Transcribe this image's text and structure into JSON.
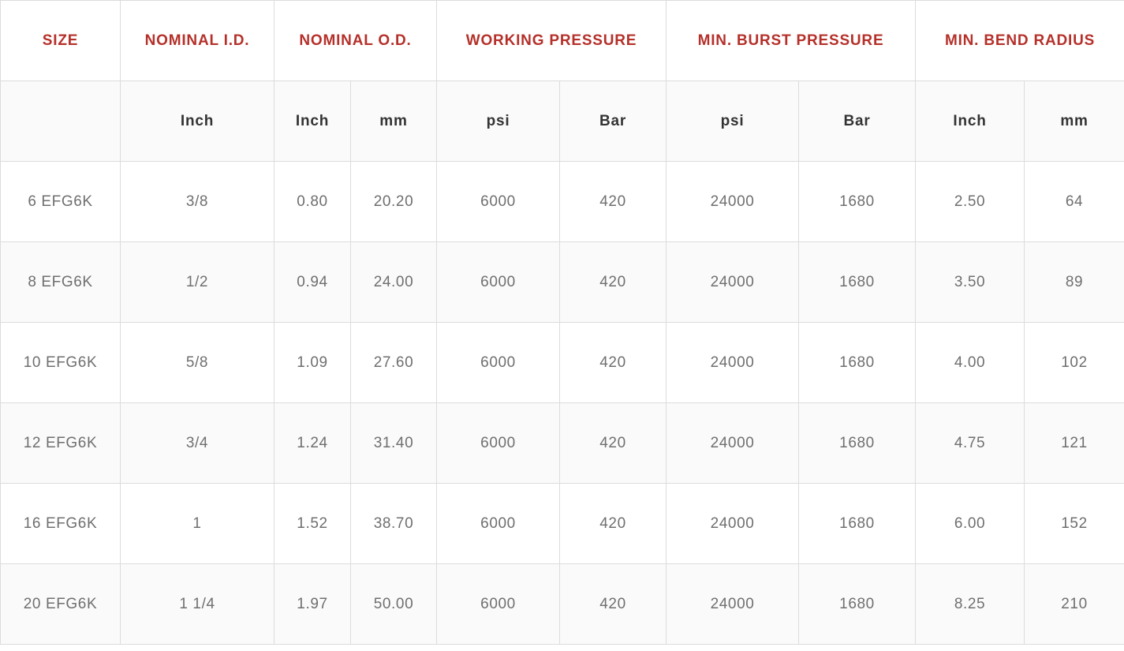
{
  "header": {
    "groups": [
      "SIZE",
      "NOMINAL I.D.",
      "NOMINAL O.D.",
      "WORKING PRESSURE",
      "MIN. BURST PRESSURE",
      "MIN. BEND RADIUS"
    ],
    "units": [
      "",
      "Inch",
      "Inch",
      "mm",
      "psi",
      "Bar",
      "psi",
      "Bar",
      "Inch",
      "mm"
    ]
  },
  "rows": [
    [
      "6 EFG6K",
      "3/8",
      "0.80",
      "20.20",
      "6000",
      "420",
      "24000",
      "1680",
      "2.50",
      "64"
    ],
    [
      "8 EFG6K",
      "1/2",
      "0.94",
      "24.00",
      "6000",
      "420",
      "24000",
      "1680",
      "3.50",
      "89"
    ],
    [
      "10 EFG6K",
      "5/8",
      "1.09",
      "27.60",
      "6000",
      "420",
      "24000",
      "1680",
      "4.00",
      "102"
    ],
    [
      "12 EFG6K",
      "3/4",
      "1.24",
      "31.40",
      "6000",
      "420",
      "24000",
      "1680",
      "4.75",
      "121"
    ],
    [
      "16 EFG6K",
      "1",
      "1.52",
      "38.70",
      "6000",
      "420",
      "24000",
      "1680",
      "6.00",
      "152"
    ],
    [
      "20 EFG6K",
      "1 1/4",
      "1.97",
      "50.00",
      "6000",
      "420",
      "24000",
      "1680",
      "8.25",
      "210"
    ]
  ],
  "colors": {
    "header_text": "#b5302a",
    "unit_text": "#333333",
    "cell_text": "#6f6f6f",
    "border": "#dcdcdc",
    "stripe": "#fafafa"
  }
}
